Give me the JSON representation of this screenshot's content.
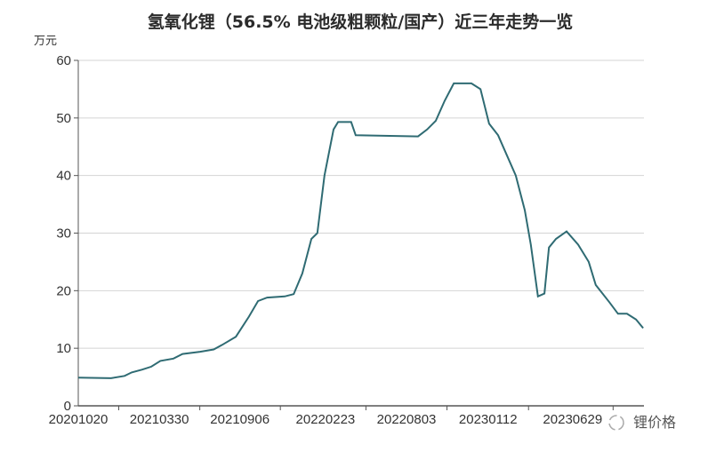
{
  "chart_data": {
    "type": "line",
    "title": "氢氧化锂（56.5% 电池级粗颗粒/国产）近三年走势一览",
    "ylabel": "万元",
    "xlabel": "",
    "ylim": [
      0,
      60
    ],
    "yticks": [
      0,
      10,
      20,
      30,
      40,
      50,
      60
    ],
    "xticks": [
      "20201020",
      "20210330",
      "20210906",
      "20220223",
      "20220803",
      "20230112",
      "20230629"
    ],
    "grid": "horizontal",
    "line_color": "#2f6b73",
    "series": [
      {
        "x": [
          "2020-10-20",
          "2020-12-24",
          "2021-01-20",
          "2021-02-03",
          "2021-02-24",
          "2021-03-14",
          "2021-04-01",
          "2021-04-27",
          "2021-05-15",
          "2021-06-19",
          "2021-07-16",
          "2021-08-02",
          "2021-08-29",
          "2021-09-24",
          "2021-10-12",
          "2021-10-30",
          "2021-12-04",
          "2021-12-22",
          "2022-01-08",
          "2022-01-26",
          "2022-02-07",
          "2022-02-21",
          "2022-03-11",
          "2022-03-20",
          "2022-04-15",
          "2022-04-24",
          "2022-08-26",
          "2022-09-13",
          "2022-09-30",
          "2022-10-18",
          "2022-11-05",
          "2022-12-10",
          "2022-12-28",
          "2023-01-14",
          "2023-02-01",
          "2023-03-08",
          "2023-03-26",
          "2023-04-07",
          "2023-04-21",
          "2023-05-04",
          "2023-05-13",
          "2023-05-27",
          "2023-06-17",
          "2023-07-10",
          "2023-07-31",
          "2023-08-14",
          "2023-09-10",
          "2023-09-27",
          "2023-10-15",
          "2023-11-02",
          "2023-11-16"
        ],
        "y": [
          4.9,
          4.8,
          5.2,
          5.8,
          6.3,
          6.8,
          7.8,
          8.2,
          9.0,
          9.4,
          9.8,
          10.6,
          12.0,
          15.5,
          18.2,
          18.8,
          19.0,
          19.4,
          23,
          29,
          30,
          40,
          48,
          49.3,
          49.3,
          47,
          46.8,
          48,
          49.5,
          53,
          56,
          56,
          55,
          49,
          47,
          40,
          34,
          28,
          19,
          19.5,
          27.5,
          29,
          30.3,
          28,
          25,
          21,
          18,
          16,
          16,
          15,
          13.5
        ]
      }
    ]
  },
  "watermark": {
    "text": "锂价格",
    "icon": "wechat-icon"
  }
}
